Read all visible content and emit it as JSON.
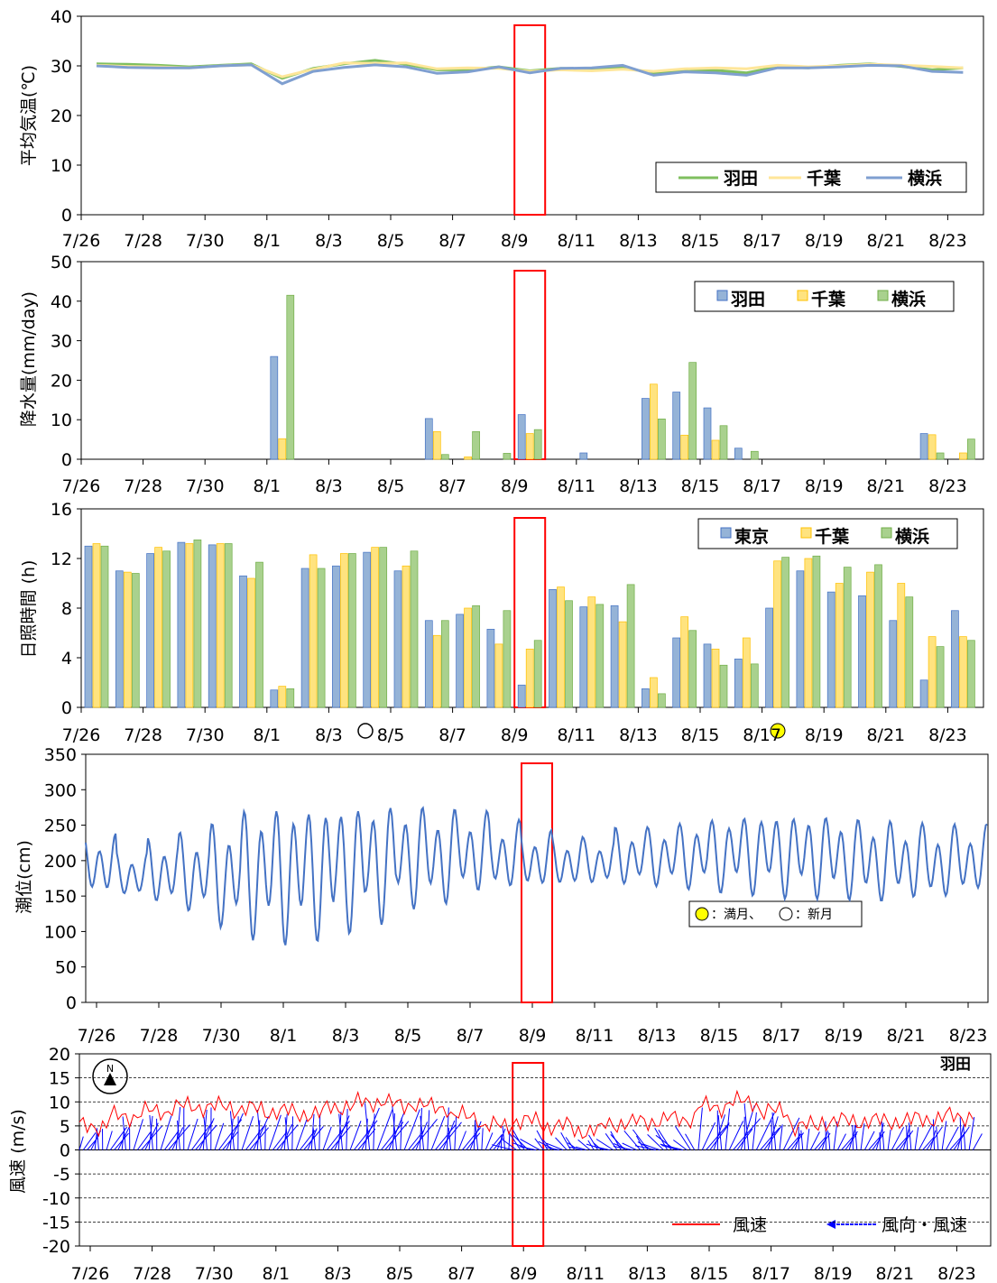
{
  "x_ticks": [
    "7/26",
    "7/28",
    "7/30",
    "8/1",
    "8/3",
    "8/5",
    "8/7",
    "8/9",
    "8/11",
    "8/13",
    "8/15",
    "8/17",
    "8/19",
    "8/21",
    "8/23"
  ],
  "colors": {
    "haneda": "#7fbf5f",
    "chiba": "#ffe699",
    "yokohama": "#7f9fd0",
    "bar_blue": "#95b3d7",
    "bar_yellow": "#ffe37f",
    "bar_green": "#a9d18e",
    "tide": "#4472c4",
    "wind_speed": "#ff0000",
    "wind_vector": "#0000ff",
    "highlight": "#ff0000",
    "full_moon": "#ffff00"
  },
  "legend": {
    "haneda": "羽田",
    "chiba": "千葉",
    "yokohama": "横浜",
    "tokyo": "東京",
    "wind_speed": "風速",
    "wind_dir_speed": "風向・風速"
  },
  "moon_legend": {
    "full": "：満月、",
    "new": "：新月"
  },
  "station_label": "羽田",
  "compass": "N",
  "chart_data": [
    {
      "type": "line",
      "ylabel": "平均気温(℃)",
      "ylim": [
        0,
        40
      ],
      "yticks": [
        0,
        10,
        20,
        30,
        40
      ],
      "highlight_day": 14,
      "series": [
        {
          "name": "羽田",
          "values": [
            30.4,
            30.3,
            30.1,
            29.8,
            30.1,
            30.4,
            27.5,
            29.5,
            30.4,
            31.1,
            30.3,
            29.2,
            29.2,
            29.8,
            29.0,
            29.5,
            29.4,
            29.6,
            28.6,
            29.0,
            29.1,
            28.6,
            29.8,
            29.6,
            30.1,
            30.4,
            29.9,
            29.2,
            29.6
          ]
        },
        {
          "name": "千葉",
          "values": [
            30.1,
            29.9,
            29.8,
            29.6,
            30.0,
            30.2,
            27.8,
            29.3,
            30.6,
            30.5,
            30.6,
            29.4,
            29.6,
            29.5,
            28.9,
            29.2,
            29.0,
            29.3,
            28.9,
            29.4,
            29.6,
            29.4,
            30.1,
            29.8,
            30.0,
            30.3,
            30.1,
            29.9,
            29.6
          ]
        },
        {
          "name": "横浜",
          "values": [
            30.0,
            29.7,
            29.6,
            29.6,
            30.0,
            30.2,
            26.4,
            28.9,
            29.7,
            30.2,
            29.8,
            28.5,
            28.8,
            29.8,
            28.6,
            29.5,
            29.6,
            30.1,
            28.1,
            28.8,
            28.6,
            28.1,
            29.6,
            29.6,
            29.8,
            30.1,
            30.0,
            28.9,
            28.7
          ]
        }
      ]
    },
    {
      "type": "bar",
      "ylabel": "降水量(mm/day)",
      "ylim": [
        0,
        50
      ],
      "yticks": [
        0,
        10,
        20,
        30,
        40,
        50
      ],
      "highlight_day": 14,
      "series": [
        {
          "name": "羽田",
          "values": [
            0,
            0,
            0,
            0,
            0,
            0,
            26,
            0,
            0,
            0,
            0,
            10.3,
            0,
            0,
            11.3,
            0,
            1.6,
            0,
            15.4,
            17,
            13,
            2.8,
            0,
            0,
            0,
            0,
            0,
            6.5,
            0
          ]
        },
        {
          "name": "千葉",
          "values": [
            0,
            0,
            0,
            0,
            0,
            0,
            5.2,
            0,
            0,
            0,
            0,
            7,
            0.6,
            0,
            6.5,
            0,
            0,
            0,
            19,
            6.1,
            4.8,
            0,
            0,
            0,
            0,
            0,
            0,
            6.2,
            1.6
          ]
        },
        {
          "name": "横浜",
          "values": [
            0,
            0,
            0,
            0,
            0,
            0,
            41.5,
            0,
            0,
            0,
            0,
            1.2,
            7,
            1.5,
            7.5,
            0,
            0,
            0,
            10.2,
            24.5,
            8.5,
            2,
            0,
            0,
            0,
            0,
            0,
            1.6,
            5.1
          ]
        }
      ]
    },
    {
      "type": "bar",
      "ylabel": "日照時間 (h)",
      "ylim": [
        0,
        16
      ],
      "yticks": [
        0,
        4,
        8,
        12,
        16
      ],
      "highlight_day": 14,
      "series": [
        {
          "name": "東京",
          "values": [
            13,
            11,
            12.4,
            13.3,
            13.1,
            10.6,
            1.4,
            11.2,
            11.4,
            12.5,
            11,
            7,
            7.5,
            6.3,
            1.8,
            9.5,
            8.1,
            8.2,
            1.5,
            5.6,
            5.1,
            3.9,
            8,
            11,
            9.3,
            9,
            7,
            2.2,
            7.8
          ]
        },
        {
          "name": "千葉",
          "values": [
            13.2,
            10.9,
            12.9,
            13.2,
            13.2,
            10.4,
            1.7,
            12.3,
            12.4,
            12.9,
            11.4,
            5.8,
            8,
            5.1,
            4.7,
            9.7,
            8.9,
            6.9,
            2.4,
            7.3,
            4.7,
            5.6,
            11.8,
            12,
            10,
            10.9,
            10,
            5.7,
            5.7
          ]
        },
        {
          "name": "横浜",
          "values": [
            13,
            10.8,
            12.6,
            13.5,
            13.2,
            11.7,
            1.5,
            11.2,
            12.4,
            12.9,
            12.6,
            7,
            8.2,
            7.8,
            5.4,
            8.6,
            8.3,
            9.9,
            1.1,
            6.2,
            3.4,
            3.5,
            12.1,
            12.2,
            11.3,
            11.5,
            8.9,
            4.9,
            5.4
          ]
        }
      ]
    },
    {
      "type": "line",
      "ylabel": "潮位(cm)",
      "ylim": [
        0,
        350
      ],
      "yticks": [
        0,
        50,
        100,
        150,
        200,
        250,
        300,
        350
      ],
      "highlight_day": 14,
      "series": [
        {
          "name": "",
          "high_tide": [
            238,
            213,
            232,
            242,
            258,
            281,
            287,
            288,
            290,
            288,
            283,
            277,
            272,
            258,
            243,
            235,
            232,
            248,
            250,
            257,
            265,
            272,
            273,
            271,
            265,
            260,
            255,
            252,
            252
          ],
          "low_tide": [
            150,
            146,
            135,
            122,
            100,
            84,
            79,
            85,
            96,
            108,
            128,
            133,
            150,
            155,
            158,
            160,
            163,
            162,
            160,
            157,
            153,
            150,
            146,
            145,
            142,
            138,
            142,
            141,
            150
          ]
        }
      ]
    },
    {
      "type": "line",
      "ylabel": "風速 (m/s)",
      "ylim": [
        -20,
        20
      ],
      "yticks": [
        -20,
        -15,
        -10,
        -5,
        0,
        5,
        10,
        15,
        20
      ],
      "highlight_day": 14,
      "series": [
        {
          "name": "風速",
          "values": [
            5,
            7,
            8,
            9,
            9,
            8.5,
            8,
            7.5,
            9,
            10,
            9.5,
            9,
            7,
            5,
            6,
            5,
            4,
            5.5,
            6,
            6.5,
            9,
            10,
            8,
            5,
            6,
            6,
            6,
            6.5,
            7
          ]
        }
      ]
    }
  ]
}
